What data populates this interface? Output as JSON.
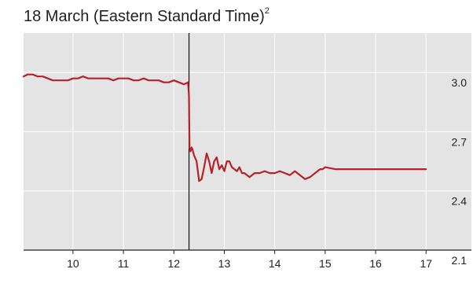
{
  "chart_data": {
    "type": "line",
    "title": "18 March (Eastern Standard Time)",
    "title_footnote": "2",
    "xlabel": "",
    "ylabel": "",
    "xlim": [
      9.02,
      17.9
    ],
    "ylim": [
      2.1,
      3.2
    ],
    "x_ticks": [
      "10",
      "11",
      "12",
      "13",
      "14",
      "15",
      "16",
      "17"
    ],
    "y_ticks": [
      "3.0",
      "2.7",
      "2.4",
      "2.1"
    ],
    "grid": true,
    "background_color": "#e4e4e4",
    "line_color": "#b5222a",
    "event_line_x": 12.3,
    "series": [
      {
        "x": [
          9.02,
          9.1,
          9.2,
          9.3,
          9.4,
          9.5,
          9.6,
          9.7,
          9.8,
          9.9,
          10.0,
          10.1,
          10.2,
          10.3,
          10.4,
          10.5,
          10.6,
          10.7,
          10.8,
          10.9,
          11.0,
          11.1,
          11.2,
          11.3,
          11.4,
          11.5,
          11.6,
          11.7,
          11.8,
          11.9,
          12.0,
          12.1,
          12.2,
          12.28,
          12.3,
          12.31,
          12.33,
          12.35,
          12.37,
          12.4,
          12.45,
          12.5,
          12.55,
          12.6,
          12.65,
          12.7,
          12.75,
          12.8,
          12.85,
          12.9,
          12.95,
          13.0,
          13.05,
          13.1,
          13.15,
          13.2,
          13.25,
          13.3,
          13.35,
          13.4,
          13.5,
          13.6,
          13.7,
          13.8,
          13.9,
          14.0,
          14.1,
          14.2,
          14.3,
          14.4,
          14.5,
          14.6,
          14.7,
          14.8,
          14.9,
          14.95,
          15.0,
          15.2,
          15.5,
          15.8,
          16.0,
          16.3,
          16.6,
          17.0
        ],
        "values": [
          2.98,
          2.99,
          2.99,
          2.98,
          2.98,
          2.97,
          2.96,
          2.96,
          2.96,
          2.96,
          2.97,
          2.97,
          2.98,
          2.97,
          2.97,
          2.97,
          2.97,
          2.97,
          2.96,
          2.97,
          2.97,
          2.97,
          2.96,
          2.96,
          2.97,
          2.96,
          2.96,
          2.96,
          2.95,
          2.95,
          2.96,
          2.95,
          2.94,
          2.95,
          2.88,
          2.62,
          2.6,
          2.62,
          2.61,
          2.58,
          2.55,
          2.45,
          2.46,
          2.52,
          2.59,
          2.55,
          2.49,
          2.55,
          2.57,
          2.51,
          2.53,
          2.5,
          2.55,
          2.55,
          2.52,
          2.51,
          2.5,
          2.52,
          2.49,
          2.49,
          2.47,
          2.49,
          2.49,
          2.5,
          2.49,
          2.49,
          2.5,
          2.49,
          2.48,
          2.5,
          2.48,
          2.46,
          2.47,
          2.49,
          2.51,
          2.51,
          2.52,
          2.51,
          2.51,
          2.51,
          2.51,
          2.51,
          2.51,
          2.51
        ]
      }
    ]
  }
}
